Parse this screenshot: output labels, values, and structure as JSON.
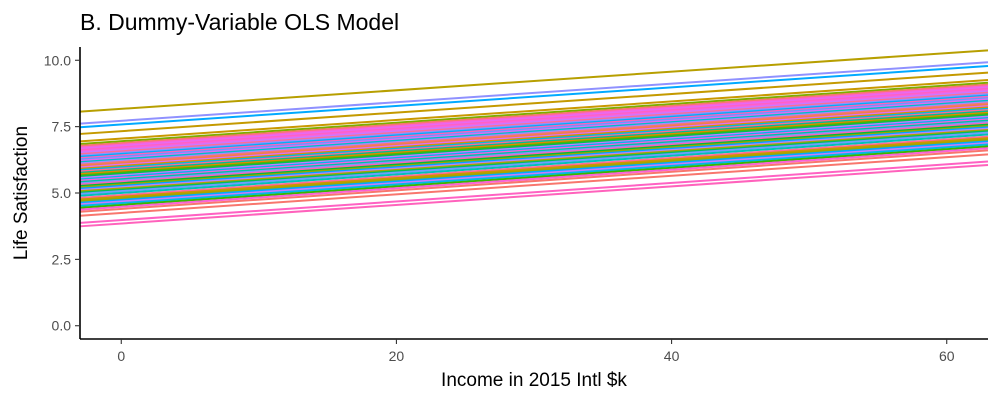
{
  "chart_data": {
    "type": "line",
    "title": "B. Dummy-Variable OLS Model",
    "xlabel": "Income in 2015 Intl $k",
    "ylabel": "Life Satisfaction",
    "xlim": [
      -3,
      63
    ],
    "ylim": [
      -0.5,
      10.5
    ],
    "xticks": [
      0,
      20,
      40,
      60
    ],
    "xtick_labels": [
      "0",
      "20",
      "40",
      "60"
    ],
    "yticks": [
      0,
      2.5,
      5,
      7.5,
      10
    ],
    "ytick_labels": [
      "0.0",
      "2.5",
      "5.0",
      "7.5",
      "10.0"
    ],
    "grid": false,
    "legend": "none",
    "slope": 0.035,
    "series": [
      {
        "intercept": 8.17,
        "color": "#b79f00"
      },
      {
        "intercept": 7.72,
        "color": "#8f91ff"
      },
      {
        "intercept": 7.58,
        "color": "#00a9ff"
      },
      {
        "intercept": 7.33,
        "color": "#c49a00"
      },
      {
        "intercept": 7.05,
        "color": "#c99800"
      },
      {
        "intercept": 6.95,
        "color": "#7cae00"
      },
      {
        "intercept": 6.88,
        "color": "#f8766d"
      },
      {
        "intercept": 6.82,
        "color": "#fd61d1"
      },
      {
        "intercept": 6.77,
        "color": "#e76bf3"
      },
      {
        "intercept": 6.72,
        "color": "#ff61c3"
      },
      {
        "intercept": 6.67,
        "color": "#f564e3"
      },
      {
        "intercept": 6.62,
        "color": "#c77cff"
      },
      {
        "intercept": 6.57,
        "color": "#ff6c91"
      },
      {
        "intercept": 6.52,
        "color": "#9590ff"
      },
      {
        "intercept": 6.47,
        "color": "#00b0f6"
      },
      {
        "intercept": 6.42,
        "color": "#ff62bc"
      },
      {
        "intercept": 6.37,
        "color": "#619cff"
      },
      {
        "intercept": 6.32,
        "color": "#e16cf5"
      },
      {
        "intercept": 6.27,
        "color": "#00bfc4"
      },
      {
        "intercept": 6.22,
        "color": "#a58aff"
      },
      {
        "intercept": 6.17,
        "color": "#f8766d"
      },
      {
        "intercept": 6.12,
        "color": "#ef7f49"
      },
      {
        "intercept": 6.07,
        "color": "#dc71fa"
      },
      {
        "intercept": 6.02,
        "color": "#d89000"
      },
      {
        "intercept": 5.97,
        "color": "#00b9e3"
      },
      {
        "intercept": 5.92,
        "color": "#ff6a98"
      },
      {
        "intercept": 5.87,
        "color": "#00c08b"
      },
      {
        "intercept": 5.82,
        "color": "#e58700"
      },
      {
        "intercept": 5.77,
        "color": "#53b400"
      },
      {
        "intercept": 5.72,
        "color": "#00bc56"
      },
      {
        "intercept": 5.67,
        "color": "#c77cff"
      },
      {
        "intercept": 5.62,
        "color": "#00b6eb"
      },
      {
        "intercept": 5.57,
        "color": "#f862e0"
      },
      {
        "intercept": 5.52,
        "color": "#00c1a3"
      },
      {
        "intercept": 5.47,
        "color": "#8494ff"
      },
      {
        "intercept": 5.42,
        "color": "#ff64b0"
      },
      {
        "intercept": 5.37,
        "color": "#00ba38"
      },
      {
        "intercept": 5.32,
        "color": "#9aa700"
      },
      {
        "intercept": 5.27,
        "color": "#00a5ff"
      },
      {
        "intercept": 5.22,
        "color": "#b385ff"
      },
      {
        "intercept": 5.17,
        "color": "#aba300"
      },
      {
        "intercept": 5.12,
        "color": "#00bd5f"
      },
      {
        "intercept": 5.07,
        "color": "#6f9cff"
      },
      {
        "intercept": 5.0,
        "color": "#00c0b8"
      },
      {
        "intercept": 4.92,
        "color": "#ff6a98"
      },
      {
        "intercept": 4.86,
        "color": "#c99800"
      },
      {
        "intercept": 4.8,
        "color": "#a3a500"
      },
      {
        "intercept": 4.74,
        "color": "#00a9ff"
      },
      {
        "intercept": 4.68,
        "color": "#c77cff"
      },
      {
        "intercept": 4.62,
        "color": "#00b8e7"
      },
      {
        "intercept": 4.55,
        "color": "#39b600"
      },
      {
        "intercept": 4.48,
        "color": "#fb61d7"
      },
      {
        "intercept": 4.4,
        "color": "#f8766d"
      },
      {
        "intercept": 4.25,
        "color": "#f8766d"
      },
      {
        "intercept": 3.98,
        "color": "#ff61c3"
      },
      {
        "intercept": 3.85,
        "color": "#ff62bc"
      }
    ]
  }
}
